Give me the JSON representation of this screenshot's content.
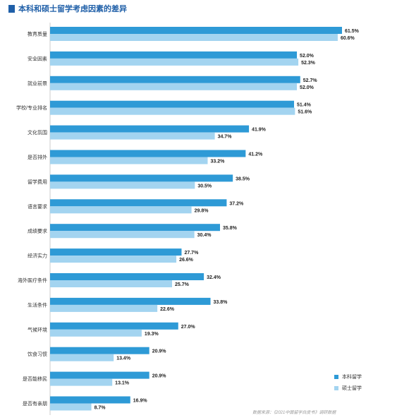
{
  "title": "本科和硕士留学考虑因素的差异",
  "source": "数据来源：《2021中国留学白皮书》调研数据",
  "colors": {
    "undergrad": "#2e9ad6",
    "master": "#a3d4f0",
    "title": "#1f5fa8"
  },
  "chart_data": {
    "type": "bar",
    "orientation": "horizontal",
    "title": "本科和硕士留学考虑因素的差异",
    "categories": [
      "教育质量",
      "安全因素",
      "就业前景",
      "学校/专业排名",
      "文化氛围",
      "是否排外",
      "留学费用",
      "语言要求",
      "成绩要求",
      "经济实力",
      "海外医疗条件",
      "生活条件",
      "气候环境",
      "饮食习惯",
      "是否能移民",
      "是否有亲朋"
    ],
    "series": [
      {
        "name": "本科留学",
        "values": [
          61.5,
          52.0,
          52.7,
          51.4,
          41.9,
          41.2,
          38.5,
          37.2,
          35.8,
          27.7,
          32.4,
          33.8,
          27.0,
          20.9,
          20.9,
          16.9
        ],
        "labels": [
          "61.5%",
          "52.0%",
          "52.7%",
          "51.4%",
          "41.9%",
          "41.2%",
          "38.5%",
          "37.2%",
          "35.8%",
          "27.7%",
          "32.4%",
          "33.8%",
          "27.0%",
          "20.9%",
          "20.9%",
          "16.9%"
        ]
      },
      {
        "name": "硕士留学",
        "values": [
          60.6,
          52.3,
          52.0,
          51.6,
          34.7,
          33.2,
          30.5,
          29.8,
          30.4,
          26.6,
          25.7,
          22.6,
          19.3,
          13.4,
          13.1,
          8.7
        ],
        "labels": [
          "60.6%",
          "52.3%",
          "52.0%",
          "51.6%",
          "34.7%",
          "33.2%",
          "30.5%",
          "29.8%",
          "30.4%",
          "26.6%",
          "25.7%",
          "22.6%",
          "19.3%",
          "13.4%",
          "13.1%",
          "8.7%"
        ]
      }
    ],
    "xlim": [
      0,
      65
    ],
    "legend_position": "bottom-right",
    "grid": false
  }
}
